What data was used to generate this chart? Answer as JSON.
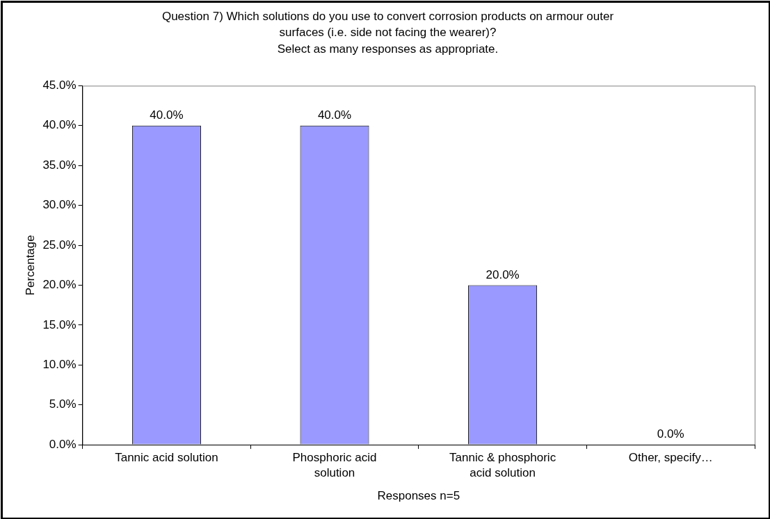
{
  "chart_data": {
    "type": "bar",
    "title": "Question 7) Which solutions do you use to convert corrosion products on armour outer\nsurfaces (i.e. side not facing the wearer)?\nSelect as many responses as appropriate.",
    "xlabel": "Responses n=5",
    "ylabel": "Percentage",
    "categories": [
      "Tannic acid solution",
      "Phosphoric acid solution",
      "Tannic & phosphoric acid solution",
      "Other, specify…"
    ],
    "values": [
      40,
      40,
      20,
      0
    ],
    "color": "#9999ff",
    "value_labels": [
      "40.0%",
      "40.0%",
      "20.0%",
      "0.0%"
    ],
    "ylim": [
      0,
      45
    ],
    "yticks": [
      {
        "value": 0,
        "label": "0.0%"
      },
      {
        "value": 5,
        "label": "5.0%"
      },
      {
        "value": 10,
        "label": "10.0%"
      },
      {
        "value": 15,
        "label": "15.0%"
      },
      {
        "value": 20,
        "label": "20.0%"
      },
      {
        "value": 25,
        "label": "25.0%"
      },
      {
        "value": 30,
        "label": "30.0%"
      },
      {
        "value": 35,
        "label": "35.0%"
      },
      {
        "value": 40,
        "label": "40.0%"
      },
      {
        "value": 45,
        "label": "45.0%"
      }
    ],
    "grid": false,
    "legend": false
  }
}
